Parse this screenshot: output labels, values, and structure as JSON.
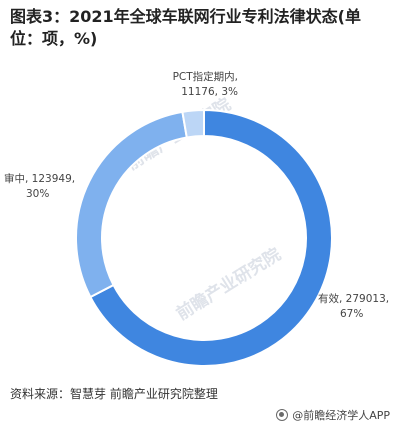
{
  "title": "图表3：2021年全球车联网行业专利法律状态(单位：项，%)",
  "source": "资料来源：智慧芽 前瞻产业研究院整理",
  "brand": "@前瞻经济学人APP",
  "watermark": "前瞻产业研究院",
  "chart_data": {
    "type": "pie",
    "donut": true,
    "categories": [
      "有效",
      "审中",
      "PCT指定期内"
    ],
    "values": [
      279013,
      123949,
      11176
    ],
    "percents": [
      67,
      30,
      3
    ],
    "labels": [
      {
        "line1": "有效, 279013,",
        "line2": "67%"
      },
      {
        "line1": "审中, 123949,",
        "line2": "30%"
      },
      {
        "line1": "PCT指定期内,",
        "line2": "11176, 3%"
      }
    ],
    "colors": [
      "#3f86e0",
      "#7fb1ee",
      "#bcd6f6"
    ],
    "legend": "none"
  }
}
